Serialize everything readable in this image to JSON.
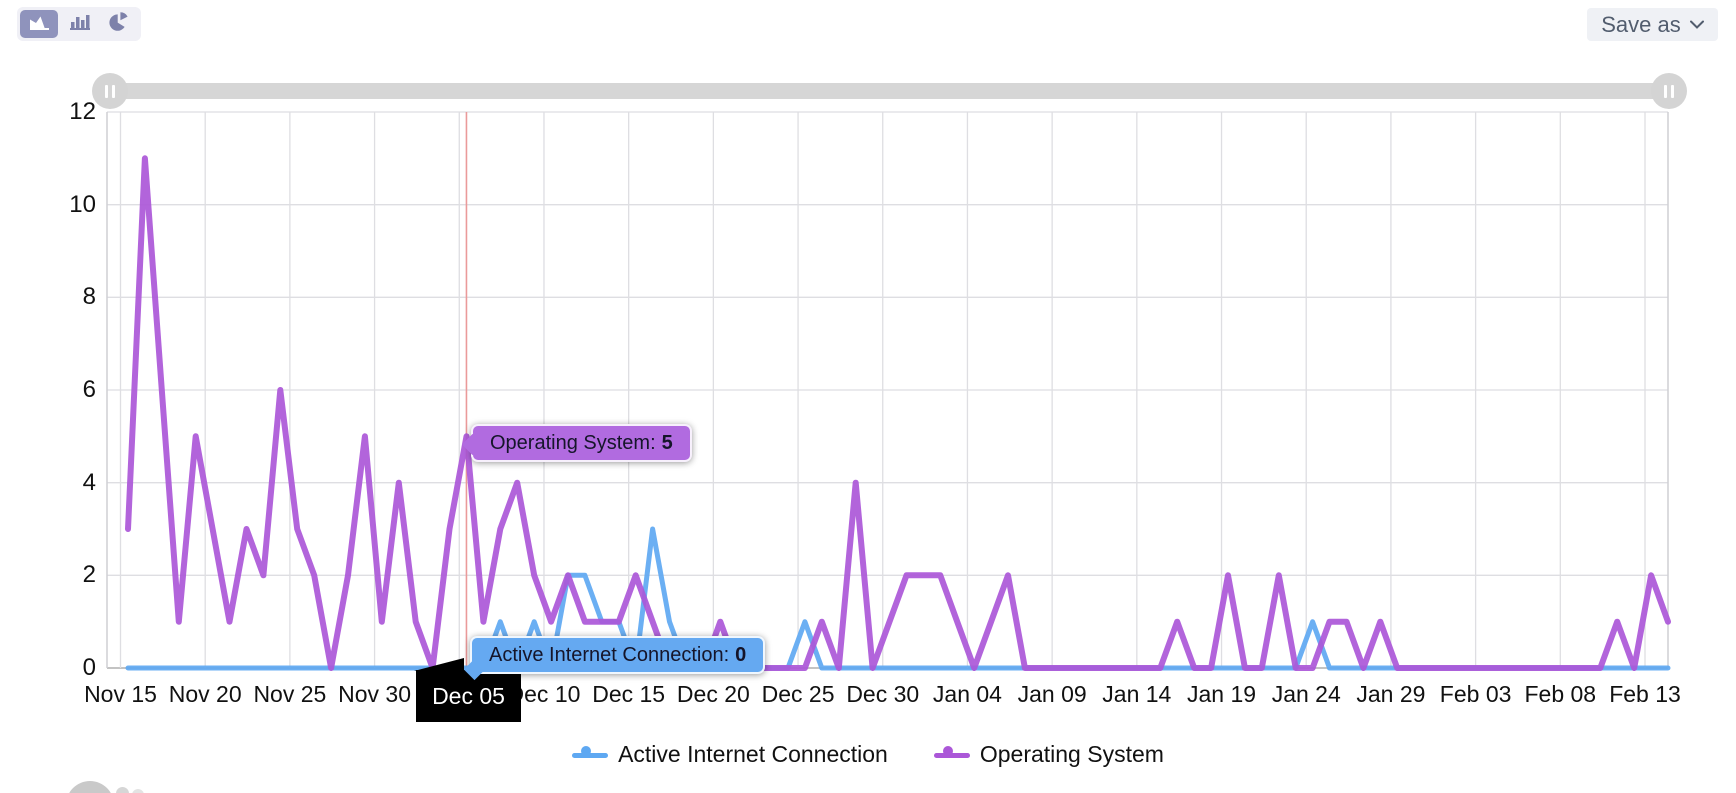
{
  "toolbar": {
    "chart_type_buttons": [
      {
        "icon": "area-chart-icon",
        "selected": true
      },
      {
        "icon": "bar-chart-icon",
        "selected": false
      },
      {
        "icon": "pie-chart-icon",
        "selected": false
      }
    ],
    "save_as": {
      "label": "Save as",
      "icon": "chevron-down-icon"
    },
    "selected_button_color": "#8f93bc",
    "icon_color": "#7d81aa"
  },
  "range_slider": {
    "track_color": "#d6d6d6",
    "handle_icon": "drag-handle-icon"
  },
  "tooltips": {
    "operating_system": {
      "label": "Operating System:",
      "value": "5",
      "color": "#b16be0"
    },
    "active_internet": {
      "label": "Active Internet Connection:",
      "value": "0",
      "color": "#65a9f1"
    }
  },
  "x_pointer_label": "Dec 05",
  "legend": [
    {
      "label": "Active Internet Connection",
      "color": "#5ea8f2"
    },
    {
      "label": "Operating System",
      "color": "#ab57d8"
    }
  ],
  "chart_data": {
    "type": "line",
    "title": "",
    "xlabel": "",
    "ylabel": "",
    "ylim": [
      0,
      12
    ],
    "y_ticks": [
      0,
      2,
      4,
      6,
      8,
      10,
      12
    ],
    "grid": true,
    "legend_position": "bottom",
    "x_tick_labels": [
      "Nov 15",
      "Nov 20",
      "Nov 25",
      "Nov 30",
      "Dec 05",
      "Dec 10",
      "Dec 15",
      "Dec 20",
      "Dec 25",
      "Dec 30",
      "Jan 04",
      "Jan 09",
      "Jan 14",
      "Jan 19",
      "Jan 24",
      "Jan 29",
      "Feb 03",
      "Feb 08",
      "Feb 13"
    ],
    "x_daily_points": 92,
    "x_range_note": "daily values from Nov 15 to Feb 14",
    "hover": {
      "x_label": "Dec 05",
      "crosshair_color": "#ea9a9a",
      "readings": {
        "Operating System": 5,
        "Active Internet Connection": 0
      }
    },
    "series": [
      {
        "name": "Active Internet Connection",
        "color": "#5ea8f2",
        "width": 5,
        "values": [
          0,
          0,
          0,
          0,
          0,
          0,
          0,
          0,
          0,
          0,
          0,
          0,
          0,
          0,
          0,
          0,
          0,
          0,
          0,
          0,
          0,
          0,
          1,
          0,
          1,
          0,
          2,
          2,
          1,
          1,
          0,
          3,
          1,
          0,
          0,
          0,
          0,
          0,
          0,
          0,
          1,
          0,
          0,
          0,
          0,
          0,
          0,
          0,
          0,
          0,
          0,
          0,
          0,
          0,
          0,
          0,
          0,
          0,
          0,
          0,
          0,
          0,
          0,
          0,
          0,
          0,
          0,
          0,
          0,
          0,
          1,
          0,
          0,
          0,
          0,
          0,
          0,
          0,
          0,
          0,
          0,
          0,
          0,
          0,
          0,
          0,
          0,
          0,
          0,
          0,
          0,
          0
        ]
      },
      {
        "name": "Operating System",
        "color": "#ab57d8",
        "width": 6,
        "values": [
          3,
          11,
          6,
          1,
          5,
          3,
          1,
          3,
          2,
          6,
          3,
          2,
          0,
          2,
          5,
          1,
          4,
          1,
          0,
          3,
          5,
          1,
          3,
          4,
          2,
          1,
          2,
          1,
          1,
          1,
          2,
          1,
          0,
          0,
          0,
          1,
          0,
          0,
          0,
          0,
          0,
          1,
          0,
          4,
          0,
          1,
          2,
          2,
          2,
          1,
          0,
          1,
          2,
          0,
          0,
          0,
          0,
          0,
          0,
          0,
          0,
          0,
          1,
          0,
          0,
          2,
          0,
          0,
          2,
          0,
          0,
          1,
          1,
          0,
          1,
          0,
          0,
          0,
          0,
          0,
          0,
          0,
          0,
          0,
          0,
          0,
          0,
          0,
          1,
          0,
          2,
          1
        ]
      }
    ]
  }
}
